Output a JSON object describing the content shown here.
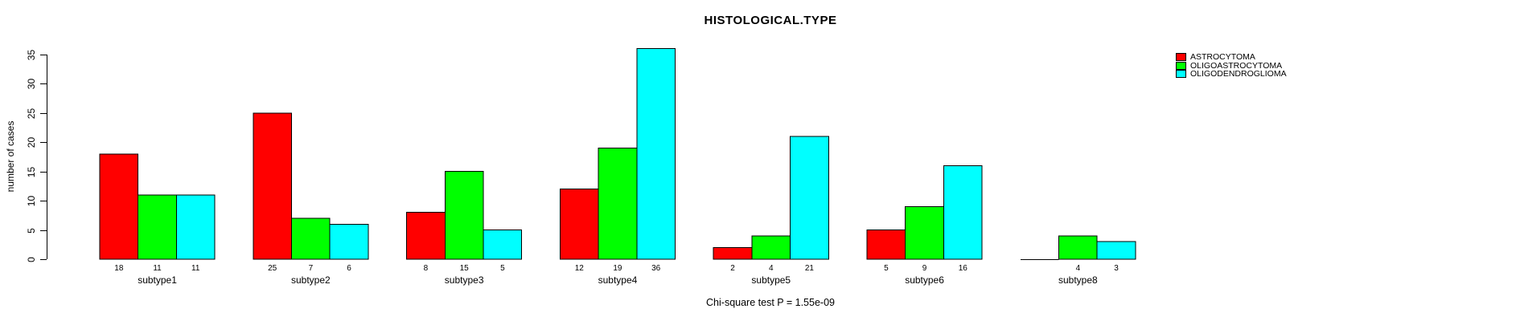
{
  "chart_data": {
    "type": "bar",
    "title": "HISTOLOGICAL.TYPE",
    "ylabel": "number of cases",
    "xlabel": "",
    "caption": "Chi-square test P = 1.55e-09",
    "categories": [
      "subtype1",
      "subtype2",
      "subtype3",
      "subtype4",
      "subtype5",
      "subtype6",
      "subtype8"
    ],
    "series": [
      {
        "name": "ASTROCYTOMA",
        "color": "#ff0000",
        "values": [
          18,
          25,
          8,
          12,
          2,
          5,
          0
        ]
      },
      {
        "name": "OLIGOASTROCYTOMA",
        "color": "#00ff00",
        "values": [
          11,
          7,
          15,
          19,
          4,
          9,
          4
        ]
      },
      {
        "name": "OLIGODENDROGLIOMA",
        "color": "#00ffff",
        "values": [
          11,
          6,
          5,
          36,
          21,
          16,
          3
        ]
      }
    ],
    "yticks": [
      0,
      5,
      10,
      15,
      20,
      25,
      30,
      35
    ],
    "ylim": [
      0,
      35
    ],
    "bar_value_labels": true,
    "hide_zero_value_labels": true,
    "bar_outline_color": "#000000",
    "axis_color": "#000000",
    "grid": false,
    "legend_position": "top-right"
  }
}
